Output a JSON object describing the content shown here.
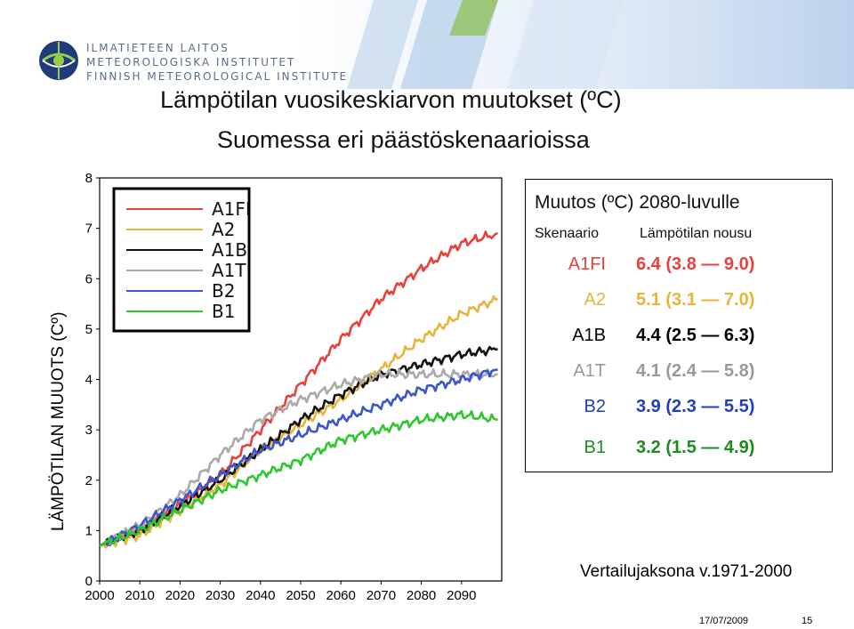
{
  "header": {
    "org_lines": [
      "ILMATIETEEN LAITOS",
      "METEOROLOGISKA INSTITUTET",
      "FINNISH METEOROLOGICAL INSTITUTE"
    ]
  },
  "title_line1": "Lämpötilan vuosikeskiarvon muutokset (ºC)",
  "title_line2": "Suomessa eri päästöskenaarioissa",
  "colors": {
    "A1FI": "#e8413c",
    "A2": "#e8b43a",
    "A1B": "#111111",
    "A1T": "#aaaaaa",
    "B2": "#3a56c8",
    "B1": "#2ec82e",
    "brand_blue": "#1f3b7a",
    "brand_green": "#9ccb4a"
  },
  "chart_data": {
    "type": "line",
    "ylabel": "LÄMPÖTILAN MUUOTS (Cº)",
    "xlabel": "",
    "xlim": [
      2000,
      2100
    ],
    "ylim": [
      0,
      8
    ],
    "x_ticks": [
      2000,
      2010,
      2020,
      2030,
      2040,
      2050,
      2060,
      2070,
      2080,
      2090
    ],
    "y_ticks": [
      0,
      1,
      2,
      3,
      4,
      5,
      6,
      7,
      8
    ],
    "grid": false,
    "legend_position": "top-left",
    "x": [
      2000,
      2010,
      2020,
      2030,
      2040,
      2050,
      2060,
      2070,
      2080,
      2090,
      2099
    ],
    "series": [
      {
        "name": "A1FI",
        "values": [
          0.7,
          1.0,
          1.5,
          2.1,
          3.0,
          3.9,
          4.8,
          5.6,
          6.2,
          6.7,
          6.9
        ]
      },
      {
        "name": "A2",
        "values": [
          0.7,
          0.9,
          1.4,
          1.9,
          2.6,
          3.1,
          3.6,
          4.2,
          4.8,
          5.3,
          5.6
        ]
      },
      {
        "name": "A1B",
        "values": [
          0.7,
          1.0,
          1.5,
          2.0,
          2.6,
          3.2,
          3.7,
          4.1,
          4.3,
          4.5,
          4.6
        ]
      },
      {
        "name": "A1T",
        "values": [
          0.7,
          1.1,
          1.7,
          2.5,
          3.2,
          3.6,
          3.9,
          4.1,
          4.1,
          4.1,
          4.1
        ]
      },
      {
        "name": "B2",
        "values": [
          0.7,
          1.1,
          1.6,
          2.1,
          2.6,
          2.9,
          3.2,
          3.5,
          3.8,
          4.0,
          4.2
        ]
      },
      {
        "name": "B1",
        "values": [
          0.7,
          1.0,
          1.4,
          1.8,
          2.1,
          2.4,
          2.8,
          3.0,
          3.2,
          3.3,
          3.2
        ]
      }
    ]
  },
  "table": {
    "heading": "Muutos (ºC) 2080-luvulle",
    "col_scenario": "Skenaario",
    "col_increase": "Lämpötilan nousu",
    "rows": [
      {
        "name": "A1FI",
        "value": "6.4 (3.8 — 9.0)",
        "color": "#e8413c"
      },
      {
        "name": "A2",
        "value": "5.1 (3.1 — 7.0)",
        "color": "#e8b43a"
      },
      {
        "name": "A1B",
        "value": "4.4 (2.5 — 6.3)",
        "color": "#000000"
      },
      {
        "name": "A1T",
        "value": "4.1 (2.4 — 5.8)",
        "color": "#999999"
      },
      {
        "name": "B2",
        "value": "3.9 (2.3 — 5.5)",
        "color": "#1f3fbf"
      },
      {
        "name": "B1",
        "value": "3.2 (1.5 — 4.9)",
        "color": "#1c8c1c"
      }
    ]
  },
  "reference_period": "Vertailujaksona v.1971-2000",
  "footer": {
    "date": "17/07/2009",
    "page": "15"
  }
}
